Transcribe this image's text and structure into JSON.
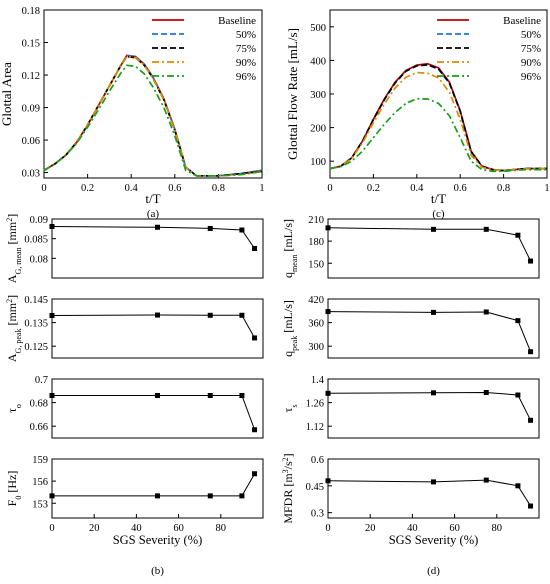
{
  "chart_data": [
    {
      "id": "a",
      "type": "line",
      "panel_label": "(a)",
      "xlabel": "t/T",
      "ylabel": "Glottal Area",
      "xlim": [
        0,
        1
      ],
      "ylim": [
        0.025,
        0.18
      ],
      "xticks": [
        0,
        0.2,
        0.4,
        0.6,
        0.8,
        1
      ],
      "xtick_labels": [
        "0",
        "0.2",
        "0.4",
        "0.6",
        "0.8",
        "1"
      ],
      "yticks": [
        0.03,
        0.06,
        0.09,
        0.12,
        0.15,
        0.18
      ],
      "ytick_labels": [
        "0.03",
        "0.06",
        "0.09",
        "0.12",
        "0.15",
        "0.18"
      ],
      "legend_position": "top-right",
      "series": [
        {
          "name": "Baseline",
          "color": "#c00000",
          "dash": "solid",
          "x": [
            0,
            0.05,
            0.1,
            0.15,
            0.2,
            0.25,
            0.3,
            0.35,
            0.38,
            0.42,
            0.46,
            0.5,
            0.55,
            0.6,
            0.65,
            0.7,
            0.8,
            0.9,
            1
          ],
          "y": [
            0.032,
            0.038,
            0.046,
            0.058,
            0.074,
            0.092,
            0.11,
            0.128,
            0.138,
            0.137,
            0.13,
            0.118,
            0.098,
            0.07,
            0.035,
            0.027,
            0.027,
            0.029,
            0.032
          ]
        },
        {
          "name": "50%",
          "color": "#1f77d0",
          "dash": "dashed",
          "x": [
            0,
            0.05,
            0.1,
            0.15,
            0.2,
            0.25,
            0.3,
            0.35,
            0.38,
            0.42,
            0.46,
            0.5,
            0.55,
            0.6,
            0.65,
            0.7,
            0.8,
            0.9,
            1
          ],
          "y": [
            0.032,
            0.038,
            0.046,
            0.058,
            0.074,
            0.092,
            0.11,
            0.128,
            0.138,
            0.137,
            0.13,
            0.118,
            0.098,
            0.07,
            0.035,
            0.027,
            0.027,
            0.029,
            0.032
          ]
        },
        {
          "name": "75%",
          "color": "#000000",
          "dash": "dashed",
          "x": [
            0,
            0.05,
            0.1,
            0.15,
            0.2,
            0.25,
            0.3,
            0.35,
            0.38,
            0.42,
            0.46,
            0.5,
            0.55,
            0.6,
            0.65,
            0.7,
            0.8,
            0.9,
            1
          ],
          "y": [
            0.032,
            0.038,
            0.046,
            0.058,
            0.074,
            0.092,
            0.11,
            0.128,
            0.137,
            0.136,
            0.129,
            0.117,
            0.097,
            0.069,
            0.035,
            0.027,
            0.027,
            0.029,
            0.031
          ]
        },
        {
          "name": "90%",
          "color": "#e08a00",
          "dash": "dashdot",
          "x": [
            0,
            0.05,
            0.1,
            0.15,
            0.2,
            0.25,
            0.3,
            0.35,
            0.38,
            0.42,
            0.46,
            0.5,
            0.55,
            0.6,
            0.65,
            0.7,
            0.8,
            0.9,
            1
          ],
          "y": [
            0.032,
            0.038,
            0.046,
            0.058,
            0.074,
            0.092,
            0.11,
            0.128,
            0.137,
            0.136,
            0.129,
            0.117,
            0.097,
            0.069,
            0.035,
            0.027,
            0.027,
            0.028,
            0.031
          ]
        },
        {
          "name": "96%",
          "color": "#1a9e1a",
          "dash": "dashdot",
          "x": [
            0,
            0.05,
            0.1,
            0.15,
            0.2,
            0.25,
            0.3,
            0.35,
            0.38,
            0.42,
            0.46,
            0.5,
            0.55,
            0.6,
            0.65,
            0.7,
            0.8,
            0.9,
            1
          ],
          "y": [
            0.032,
            0.038,
            0.046,
            0.057,
            0.072,
            0.088,
            0.105,
            0.121,
            0.129,
            0.128,
            0.121,
            0.109,
            0.09,
            0.064,
            0.032,
            0.027,
            0.027,
            0.028,
            0.031
          ]
        }
      ]
    },
    {
      "id": "c",
      "type": "line",
      "panel_label": "(c)",
      "xlabel": "t/T",
      "ylabel": "Glottal Flow Rate [mL/s]",
      "xlim": [
        0,
        1
      ],
      "ylim": [
        50,
        550
      ],
      "xticks": [
        0,
        0.2,
        0.4,
        0.6,
        0.8,
        1
      ],
      "xtick_labels": [
        "0",
        "0.2",
        "0.4",
        "0.6",
        "0.8",
        "1"
      ],
      "yticks": [
        100,
        200,
        300,
        400,
        500
      ],
      "ytick_labels": [
        "100",
        "200",
        "300",
        "400",
        "500"
      ],
      "legend_position": "top-right",
      "series": [
        {
          "name": "Baseline",
          "color": "#c00000",
          "dash": "solid",
          "x": [
            0,
            0.05,
            0.1,
            0.15,
            0.2,
            0.25,
            0.3,
            0.35,
            0.4,
            0.45,
            0.5,
            0.55,
            0.6,
            0.65,
            0.7,
            0.75,
            0.8,
            0.9,
            1
          ],
          "y": [
            78,
            85,
            110,
            160,
            225,
            285,
            335,
            370,
            386,
            390,
            378,
            335,
            250,
            130,
            85,
            75,
            72,
            78,
            78
          ]
        },
        {
          "name": "50%",
          "color": "#1f77d0",
          "dash": "dashed",
          "x": [
            0,
            0.05,
            0.1,
            0.15,
            0.2,
            0.25,
            0.3,
            0.35,
            0.4,
            0.45,
            0.5,
            0.55,
            0.6,
            0.65,
            0.7,
            0.75,
            0.8,
            0.9,
            1
          ],
          "y": [
            78,
            85,
            110,
            160,
            224,
            283,
            333,
            368,
            384,
            386,
            374,
            332,
            248,
            128,
            85,
            75,
            72,
            78,
            78
          ]
        },
        {
          "name": "75%",
          "color": "#000000",
          "dash": "dashed",
          "x": [
            0,
            0.05,
            0.1,
            0.15,
            0.2,
            0.25,
            0.3,
            0.35,
            0.4,
            0.45,
            0.5,
            0.55,
            0.6,
            0.65,
            0.7,
            0.75,
            0.8,
            0.9,
            1
          ],
          "y": [
            78,
            85,
            110,
            160,
            224,
            283,
            333,
            368,
            384,
            387,
            375,
            333,
            249,
            129,
            85,
            75,
            72,
            78,
            78
          ]
        },
        {
          "name": "90%",
          "color": "#e08a00",
          "dash": "dashdot",
          "x": [
            0,
            0.05,
            0.1,
            0.15,
            0.2,
            0.25,
            0.3,
            0.35,
            0.4,
            0.45,
            0.5,
            0.55,
            0.6,
            0.65,
            0.7,
            0.75,
            0.8,
            0.9,
            1
          ],
          "y": [
            78,
            85,
            108,
            155,
            215,
            270,
            318,
            350,
            364,
            362,
            348,
            305,
            225,
            118,
            82,
            74,
            72,
            77,
            77
          ]
        },
        {
          "name": "96%",
          "color": "#1a9e1a",
          "dash": "dashdot",
          "x": [
            0,
            0.05,
            0.1,
            0.15,
            0.2,
            0.25,
            0.3,
            0.35,
            0.4,
            0.45,
            0.5,
            0.55,
            0.6,
            0.65,
            0.7,
            0.75,
            0.8,
            0.9,
            1
          ],
          "y": [
            78,
            84,
            100,
            130,
            170,
            210,
            245,
            272,
            286,
            285,
            272,
            235,
            170,
            100,
            75,
            70,
            70,
            75,
            75
          ]
        }
      ]
    },
    {
      "id": "b1",
      "type": "line",
      "ylabel": "A_G,mean [mm^2]",
      "ylabel_main": "A",
      "ylabel_sub": "G, mean",
      "ylabel_unit": " [mm",
      "ylabel_sup": "2",
      "ylabel_end": "]",
      "xlim": [
        0,
        100
      ],
      "ylim": [
        0.075,
        0.09
      ],
      "yticks": [
        0.08,
        0.085,
        0.09
      ],
      "ytick_labels": [
        "0.08",
        "0.085",
        "0.09"
      ],
      "x": [
        0,
        50,
        75,
        90,
        96
      ],
      "y": [
        0.0881,
        0.0879,
        0.0876,
        0.0872,
        0.0825
      ]
    },
    {
      "id": "b2",
      "type": "line",
      "ylabel": "A_G,peak [mm^2]",
      "ylabel_main": "A",
      "ylabel_sub": "G, peak",
      "ylabel_unit": " [mm",
      "ylabel_sup": "2",
      "ylabel_end": "]",
      "xlim": [
        0,
        100
      ],
      "ylim": [
        0.12,
        0.145
      ],
      "yticks": [
        0.125,
        0.135,
        0.145
      ],
      "ytick_labels": [
        "0.125",
        "0.135",
        "0.145"
      ],
      "x": [
        0,
        50,
        75,
        90,
        96
      ],
      "y": [
        0.138,
        0.1382,
        0.1381,
        0.1381,
        0.1285
      ]
    },
    {
      "id": "b3",
      "type": "line",
      "ylabel": "τ_o",
      "ylabel_main": "τ",
      "ylabel_sub": "o",
      "ylabel_unit": "",
      "ylabel_sup": "",
      "ylabel_end": "",
      "xlim": [
        0,
        100
      ],
      "ylim": [
        0.65,
        0.7
      ],
      "yticks": [
        0.66,
        0.68,
        0.7
      ],
      "ytick_labels": [
        "0.66",
        "0.68",
        "0.7"
      ],
      "x": [
        0,
        50,
        75,
        90,
        96
      ],
      "y": [
        0.686,
        0.686,
        0.686,
        0.686,
        0.657
      ]
    },
    {
      "id": "b4",
      "type": "line",
      "ylabel": "F_0 [Hz]",
      "ylabel_main": "F",
      "ylabel_sub": "0",
      "ylabel_unit": " [Hz]",
      "ylabel_sup": "",
      "ylabel_end": "",
      "xlim": [
        0,
        100
      ],
      "ylim": [
        151,
        159
      ],
      "yticks": [
        153,
        156,
        159
      ],
      "ytick_labels": [
        "153",
        "156",
        "159"
      ],
      "xticks": [
        0,
        20,
        40,
        60,
        80
      ],
      "xtick_labels": [
        "0",
        "20",
        "40",
        "60",
        "80"
      ],
      "xlabel": "SGS Severity (%)",
      "panel_label": "(b)",
      "x": [
        0,
        50,
        75,
        90,
        96
      ],
      "y": [
        154,
        154,
        154,
        154,
        157
      ]
    },
    {
      "id": "d1",
      "type": "line",
      "ylabel": "q_mean [mL/s]",
      "ylabel_main": "q",
      "ylabel_sub": "mean",
      "ylabel_unit": " [mL/s]",
      "ylabel_sup": "",
      "ylabel_end": "",
      "xlim": [
        0,
        100
      ],
      "ylim": [
        130,
        210
      ],
      "yticks": [
        150,
        180,
        210
      ],
      "ytick_labels": [
        "150",
        "180",
        "210"
      ],
      "x": [
        0,
        50,
        75,
        90,
        96
      ],
      "y": [
        198,
        196,
        196,
        188,
        153
      ]
    },
    {
      "id": "d2",
      "type": "line",
      "ylabel": "q_peak [mL/s]",
      "ylabel_main": "q",
      "ylabel_sub": "peak",
      "ylabel_unit": " [mL/s]",
      "ylabel_sup": "",
      "ylabel_end": "",
      "xlim": [
        0,
        100
      ],
      "ylim": [
        270,
        420
      ],
      "yticks": [
        300,
        360,
        420
      ],
      "ytick_labels": [
        "300",
        "360",
        "420"
      ],
      "x": [
        0,
        50,
        75,
        90,
        96
      ],
      "y": [
        388,
        386,
        387,
        365,
        286
      ]
    },
    {
      "id": "d3",
      "type": "line",
      "ylabel": "τ_s",
      "ylabel_main": "τ",
      "ylabel_sub": "s",
      "ylabel_unit": "",
      "ylabel_sup": "",
      "ylabel_end": "",
      "xlim": [
        0,
        100
      ],
      "ylim": [
        1.05,
        1.4
      ],
      "yticks": [
        1.12,
        1.26,
        1.4
      ],
      "ytick_labels": [
        "1.12",
        "1.26",
        "1.4"
      ],
      "x": [
        0,
        50,
        75,
        90,
        96
      ],
      "y": [
        1.315,
        1.318,
        1.32,
        1.305,
        1.155
      ]
    },
    {
      "id": "d4",
      "type": "line",
      "ylabel": "MFDR [m^3/s^2]",
      "ylabel_main": "MFDR [m",
      "ylabel_sub": "",
      "ylabel_unit": "",
      "ylabel_sup": "3",
      "ylabel_end": "/s",
      "ylabel_sup2": "2",
      "ylabel_end2": "]",
      "xlim": [
        0,
        100
      ],
      "ylim": [
        0.27,
        0.6
      ],
      "yticks": [
        0.3,
        0.45,
        0.6
      ],
      "ytick_labels": [
        "0.3",
        "0.45",
        "0.6"
      ],
      "xticks": [
        0,
        20,
        40,
        60,
        80
      ],
      "xtick_labels": [
        "0",
        "20",
        "40",
        "60",
        "80"
      ],
      "xlabel": "SGS Severity (%)",
      "panel_label": "(d)",
      "x": [
        0,
        50,
        75,
        90,
        96
      ],
      "y": [
        0.478,
        0.472,
        0.482,
        0.45,
        0.337
      ]
    }
  ]
}
